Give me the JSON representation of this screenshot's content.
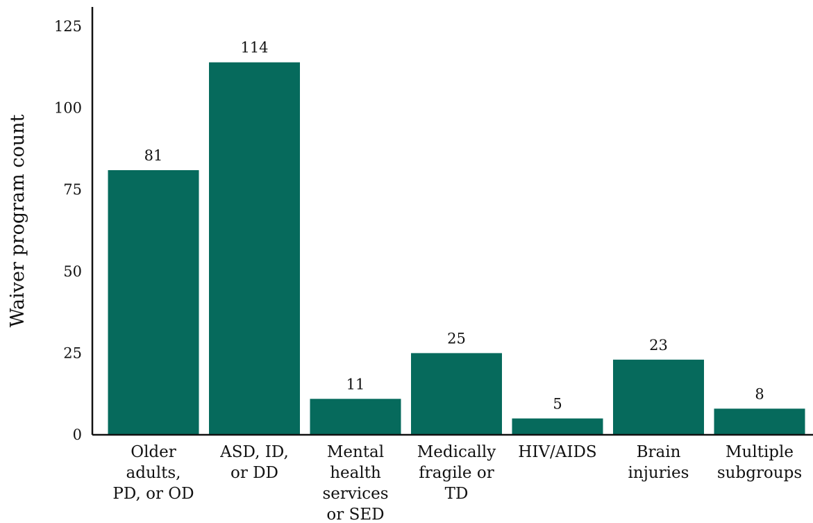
{
  "chart_data": {
    "type": "bar",
    "title": "",
    "xlabel": "",
    "ylabel": "Waiver program count",
    "ylim": [
      0,
      125
    ],
    "yticks": [
      0,
      25,
      50,
      75,
      100,
      125
    ],
    "grid": false,
    "bar_color": "#066a5c",
    "categories": [
      [
        "Older",
        "adults,",
        "PD, or OD"
      ],
      [
        "ASD, ID,",
        "or DD"
      ],
      [
        "Mental",
        "health",
        "services",
        "or SED"
      ],
      [
        "Medically",
        "fragile or",
        "TD"
      ],
      [
        "HIV/AIDS"
      ],
      [
        "Brain",
        "injuries"
      ],
      [
        "Multiple",
        "subgroups"
      ]
    ],
    "values": [
      81,
      114,
      11,
      25,
      5,
      23,
      8
    ]
  }
}
